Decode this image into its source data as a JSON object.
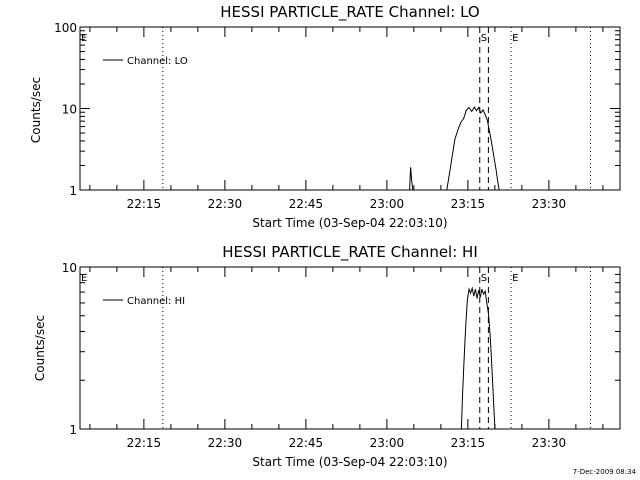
{
  "chart_data": [
    {
      "type": "line",
      "title": "HESSI PARTICLE_RATE Channel: LO",
      "xlabel": "Start Time (03-Sep-04 22:03:10)",
      "ylabel": "Counts/sec",
      "yscale": "log",
      "ylim": [
        1,
        100
      ],
      "y_ticks": [
        "1",
        "10",
        "100"
      ],
      "x_tick_labels": [
        "22:15",
        "22:30",
        "22:45",
        "23:00",
        "23:15",
        "23:30"
      ],
      "x_tick_minutes": [
        15,
        30,
        45,
        60,
        75,
        90
      ],
      "xlim_minutes": [
        3.17,
        103.17
      ],
      "grid": false,
      "legend": {
        "position": "top-left",
        "entries": [
          "Channel: LO"
        ]
      },
      "markers": [
        {
          "label": "E",
          "style": "dotted",
          "minute": 3.17
        },
        {
          "label": "",
          "style": "dotted",
          "minute": 18.5
        },
        {
          "label": "S",
          "style": "dashed",
          "minute": 77.2
        },
        {
          "label": "",
          "style": "dashed",
          "minute": 78.8
        },
        {
          "label": "E",
          "style": "dotted",
          "minute": 83.0
        },
        {
          "label": "",
          "style": "dotted",
          "minute": 97.7
        }
      ],
      "series": [
        {
          "name": "Channel: LO",
          "x_minutes": [
            64.2,
            64.4,
            64.6,
            64.8,
            71.1,
            71.6,
            72.1,
            72.6,
            73.2,
            73.7,
            74.2,
            74.7,
            75.2,
            75.7,
            76.2,
            76.6,
            77.0,
            77.4,
            77.8,
            78.2,
            78.6,
            79.0,
            79.4,
            79.8,
            80.2,
            80.5,
            80.8
          ],
          "values": [
            1,
            1.9,
            1.3,
            1,
            1,
            1.6,
            2.6,
            4.2,
            5.6,
            6.8,
            7.5,
            9.5,
            10.3,
            9.2,
            10.4,
            9.4,
            10.3,
            8.8,
            9.6,
            8.4,
            7.2,
            5.2,
            3.8,
            2.6,
            1.8,
            1.3,
            1
          ]
        }
      ]
    },
    {
      "type": "line",
      "title": "HESSI PARTICLE_RATE Channel: HI",
      "xlabel": "Start Time (03-Sep-04 22:03:10)",
      "ylabel": "Counts/sec",
      "yscale": "log",
      "ylim": [
        1,
        10
      ],
      "y_ticks": [
        "1",
        "10"
      ],
      "x_tick_labels": [
        "22:15",
        "22:30",
        "22:45",
        "23:00",
        "23:15",
        "23:30"
      ],
      "x_tick_minutes": [
        15,
        30,
        45,
        60,
        75,
        90
      ],
      "xlim_minutes": [
        3.17,
        103.17
      ],
      "grid": false,
      "legend": {
        "position": "top-left",
        "entries": [
          "Channel: HI"
        ]
      },
      "markers": [
        {
          "label": "E",
          "style": "dotted",
          "minute": 3.17
        },
        {
          "label": "",
          "style": "dotted",
          "minute": 18.5
        },
        {
          "label": "S",
          "style": "dashed",
          "minute": 77.2
        },
        {
          "label": "",
          "style": "dashed",
          "minute": 78.8
        },
        {
          "label": "E",
          "style": "dotted",
          "minute": 83.0
        },
        {
          "label": "",
          "style": "dotted",
          "minute": 97.7
        }
      ],
      "series": [
        {
          "name": "Channel: HI",
          "x_minutes": [
            73.8,
            74.0,
            74.3,
            74.6,
            74.9,
            75.2,
            75.5,
            75.8,
            76.1,
            76.4,
            76.7,
            77.0,
            77.3,
            77.6,
            77.9,
            78.2,
            78.5,
            78.8,
            79.1,
            79.4,
            79.7,
            80.0
          ],
          "values": [
            1,
            1.6,
            2.7,
            4.3,
            6.2,
            7.3,
            6.9,
            7.4,
            6.6,
            7.3,
            6.4,
            7.2,
            6.5,
            7.3,
            6.8,
            7.1,
            6.0,
            5.2,
            3.9,
            2.6,
            1.6,
            1
          ]
        }
      ]
    }
  ],
  "timestamp": "7-Dec-2009 08:34"
}
